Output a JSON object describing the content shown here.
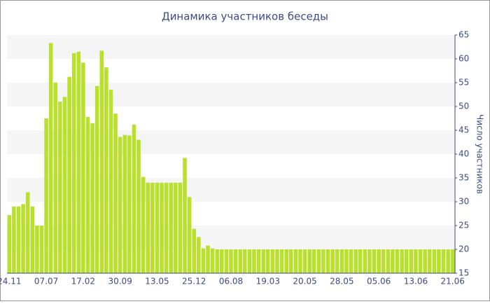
{
  "chart_data": {
    "type": "bar",
    "title": "Динамика участников беседы",
    "y_axis_label": "Число участников",
    "categories": [
      "24.11",
      null,
      null,
      null,
      null,
      null,
      null,
      null,
      "07.07",
      null,
      null,
      null,
      null,
      null,
      null,
      null,
      "17.02",
      null,
      null,
      null,
      null,
      null,
      null,
      null,
      "30.09",
      null,
      null,
      null,
      null,
      null,
      null,
      null,
      "13.05",
      null,
      null,
      null,
      null,
      null,
      null,
      null,
      "25.12",
      null,
      null,
      null,
      null,
      null,
      null,
      null,
      "06.08",
      null,
      null,
      null,
      null,
      null,
      null,
      null,
      "19.03",
      null,
      null,
      null,
      null,
      null,
      null,
      null,
      "20.05",
      null,
      null,
      null,
      null,
      null,
      null,
      null,
      "28.05",
      null,
      null,
      null,
      null,
      null,
      null,
      null,
      "05.06",
      null,
      null,
      null,
      null,
      null,
      null,
      null,
      "13.06",
      null,
      null,
      null,
      null,
      null,
      null,
      null,
      "21.06"
    ],
    "values": [
      27.2,
      29,
      29,
      29.5,
      32,
      29,
      25,
      25,
      47.5,
      63.3,
      55,
      51,
      52,
      56.2,
      61.2,
      61.5,
      59.2,
      47.8,
      46.5,
      54.3,
      61.7,
      58.2,
      53.5,
      48.5,
      43.6,
      44,
      43.9,
      46.2,
      43,
      35.2,
      34,
      34,
      34,
      34,
      34,
      34,
      34,
      34,
      39.2,
      31,
      24.3,
      22.6,
      20.2,
      20.8,
      20.2,
      20,
      20,
      20,
      20,
      20,
      20,
      20,
      20,
      20,
      20,
      20,
      20,
      20,
      20,
      20,
      20,
      20,
      20,
      20,
      20,
      20,
      20,
      20,
      20,
      20,
      20,
      20,
      20,
      20,
      20,
      20,
      20,
      20,
      20,
      20,
      20,
      20,
      20,
      20,
      20,
      20,
      20,
      20,
      20,
      20,
      20,
      20,
      20,
      20,
      20,
      20,
      20
    ],
    "color": "#b8e02c",
    "ylim": [
      15,
      65
    ],
    "yticks": [
      15,
      20,
      25,
      30,
      35,
      40,
      45,
      50,
      55,
      60,
      65
    ],
    "grid": true
  }
}
